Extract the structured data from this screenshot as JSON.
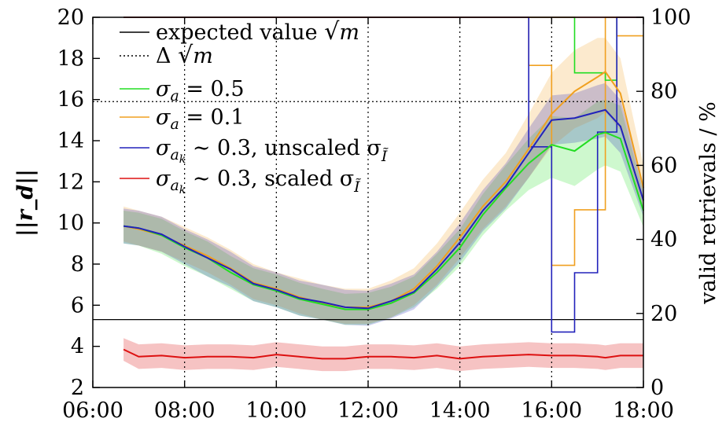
{
  "chart_data": {
    "type": "line",
    "ylabel_left": "||r_d||",
    "ylabel_right": "valid retrievals / %",
    "x_range": [
      "06:00",
      "18:00"
    ],
    "x_ticks": [
      "06:00",
      "08:00",
      "10:00",
      "12:00",
      "14:00",
      "16:00",
      "18:00"
    ],
    "y_left_ticks": [
      "2",
      "4",
      "6",
      "8",
      "10",
      "12",
      "14",
      "16",
      "18",
      "20"
    ],
    "y_right_ticks": [
      "0",
      "20",
      "40",
      "60",
      "80",
      "100"
    ],
    "y_left_range": [
      2,
      20
    ],
    "y_right_range": [
      0,
      100
    ],
    "axis_break_at": 5.3,
    "expected_value": 5.3,
    "expected_band_upper": 15.9,
    "legend": [
      {
        "key": "expected",
        "parts": [
          "expected value ",
          "√",
          "m"
        ]
      },
      {
        "key": "delta",
        "parts": [
          "Δ ",
          "√",
          "m"
        ]
      },
      {
        "key": "green",
        "parts": [
          "σ",
          "a",
          " = 0.5"
        ]
      },
      {
        "key": "orange",
        "parts": [
          "σ",
          "a",
          " = 0.1"
        ]
      },
      {
        "key": "blue",
        "parts": [
          "σ",
          "a",
          "k",
          " ∼ 0.3, unscaled σ",
          "Ĩ"
        ]
      },
      {
        "key": "red",
        "parts": [
          "σ",
          "a",
          "k",
          " ∼ 0.3, scaled σ",
          "Ĩ"
        ]
      }
    ],
    "colors": {
      "green": "#22dd22",
      "orange": "#f0a020",
      "blue": "#2222bb",
      "red": "#dd1111",
      "frame": "#000000"
    },
    "x": [
      6.67,
      7.0,
      7.5,
      8.0,
      8.5,
      9.0,
      9.5,
      10.0,
      10.5,
      11.0,
      11.5,
      12.0,
      12.5,
      13.0,
      13.5,
      14.0,
      14.5,
      15.0,
      15.5,
      16.0,
      16.5,
      17.0,
      17.17,
      17.5,
      18.0
    ],
    "series": [
      {
        "key": "green",
        "values": [
          9.85,
          9.75,
          9.4,
          8.8,
          8.3,
          7.6,
          7.0,
          6.7,
          6.3,
          6.05,
          5.8,
          5.8,
          6.1,
          6.6,
          7.6,
          8.8,
          10.4,
          11.7,
          12.9,
          13.8,
          13.5,
          14.3,
          14.4,
          14.1,
          10.6
        ],
        "lower": [
          9.0,
          8.9,
          8.5,
          7.9,
          7.4,
          6.8,
          6.2,
          5.9,
          5.5,
          5.3,
          5.05,
          5.05,
          5.4,
          5.9,
          6.8,
          7.9,
          9.4,
          10.6,
          11.6,
          12.2,
          11.8,
          12.6,
          12.8,
          12.5,
          9.8
        ],
        "upper": [
          10.6,
          10.5,
          10.2,
          9.6,
          9.1,
          8.4,
          7.8,
          7.5,
          7.1,
          6.8,
          6.55,
          6.6,
          6.9,
          7.4,
          8.5,
          9.7,
          11.4,
          12.8,
          14.1,
          15.2,
          15.1,
          15.9,
          16.0,
          15.7,
          11.5
        ]
      },
      {
        "key": "orange",
        "values": [
          9.85,
          9.7,
          9.4,
          8.9,
          8.4,
          7.8,
          7.1,
          6.8,
          6.4,
          6.1,
          5.9,
          5.9,
          6.2,
          6.8,
          7.9,
          9.3,
          10.8,
          12.0,
          13.6,
          15.3,
          16.4,
          17.1,
          17.35,
          16.3,
          11.7
        ],
        "lower": [
          9.1,
          8.9,
          8.6,
          8.1,
          7.6,
          7.0,
          6.3,
          6.0,
          5.6,
          5.3,
          5.1,
          5.1,
          5.4,
          6.0,
          7.0,
          8.3,
          9.7,
          10.8,
          12.2,
          13.7,
          14.6,
          15.1,
          15.4,
          14.5,
          10.6
        ],
        "upper": [
          10.8,
          10.6,
          10.3,
          9.8,
          9.3,
          8.7,
          8.0,
          7.6,
          7.3,
          7.0,
          6.8,
          6.8,
          7.2,
          7.8,
          9.0,
          10.5,
          12.1,
          13.4,
          15.3,
          17.3,
          18.4,
          19.0,
          19.0,
          18.0,
          12.8
        ]
      },
      {
        "key": "blue",
        "values": [
          9.85,
          9.75,
          9.45,
          8.85,
          8.3,
          7.75,
          7.05,
          6.75,
          6.35,
          6.15,
          5.9,
          5.85,
          6.2,
          6.65,
          7.75,
          9.05,
          10.6,
          11.8,
          13.4,
          15.0,
          15.1,
          15.4,
          15.5,
          14.7,
          11.1
        ],
        "lower": [
          9.0,
          8.9,
          8.6,
          8.0,
          7.4,
          6.9,
          6.2,
          5.9,
          5.5,
          5.3,
          5.05,
          5.0,
          5.35,
          5.8,
          6.9,
          8.1,
          9.6,
          10.7,
          12.2,
          13.8,
          13.9,
          14.1,
          14.2,
          13.4,
          10.3
        ],
        "upper": [
          10.7,
          10.6,
          10.3,
          9.7,
          9.2,
          8.6,
          7.9,
          7.6,
          7.2,
          7.0,
          6.75,
          6.7,
          7.05,
          7.5,
          8.6,
          10.0,
          11.6,
          12.9,
          14.6,
          16.2,
          16.3,
          16.7,
          16.8,
          16.0,
          11.9
        ]
      },
      {
        "key": "red",
        "values": [
          3.85,
          3.5,
          3.55,
          3.45,
          3.5,
          3.5,
          3.45,
          3.6,
          3.5,
          3.4,
          3.4,
          3.5,
          3.5,
          3.45,
          3.55,
          3.4,
          3.5,
          3.55,
          3.6,
          3.55,
          3.55,
          3.5,
          3.45,
          3.55,
          3.55
        ],
        "lower": [
          3.3,
          2.9,
          2.95,
          2.85,
          2.9,
          2.9,
          2.85,
          3.0,
          2.9,
          2.8,
          2.8,
          2.9,
          2.9,
          2.85,
          2.95,
          2.8,
          2.9,
          2.95,
          3.0,
          2.95,
          2.95,
          2.9,
          2.85,
          2.95,
          2.95
        ],
        "upper": [
          4.4,
          4.1,
          4.15,
          4.05,
          4.1,
          4.1,
          4.05,
          4.2,
          4.1,
          4.0,
          4.0,
          4.1,
          4.1,
          4.05,
          4.15,
          4.0,
          4.1,
          4.15,
          4.2,
          4.15,
          4.15,
          4.1,
          4.05,
          4.15,
          4.15
        ]
      }
    ],
    "valid_retrievals": [
      {
        "key": "green",
        "steps": [
          [
            6.67,
            100
          ],
          [
            16.0,
            100
          ],
          [
            16.5,
            85
          ],
          [
            17.17,
            83
          ],
          [
            17.42,
            100
          ],
          [
            18.0,
            100
          ]
        ]
      },
      {
        "key": "orange",
        "steps": [
          [
            6.67,
            100
          ],
          [
            15.0,
            100
          ],
          [
            15.5,
            87
          ],
          [
            16.0,
            33
          ],
          [
            16.5,
            48
          ],
          [
            17.17,
            100
          ],
          [
            17.42,
            95
          ],
          [
            18.0,
            95
          ]
        ]
      },
      {
        "key": "blue",
        "steps": [
          [
            6.67,
            100
          ],
          [
            15.0,
            100
          ],
          [
            15.5,
            65
          ],
          [
            16.0,
            15
          ],
          [
            16.5,
            31
          ],
          [
            17.0,
            69
          ],
          [
            17.42,
            100
          ],
          [
            18.0,
            100
          ]
        ]
      },
      {
        "key": "red",
        "steps": [
          [
            6.67,
            100
          ],
          [
            18.0,
            100
          ]
        ]
      }
    ]
  }
}
